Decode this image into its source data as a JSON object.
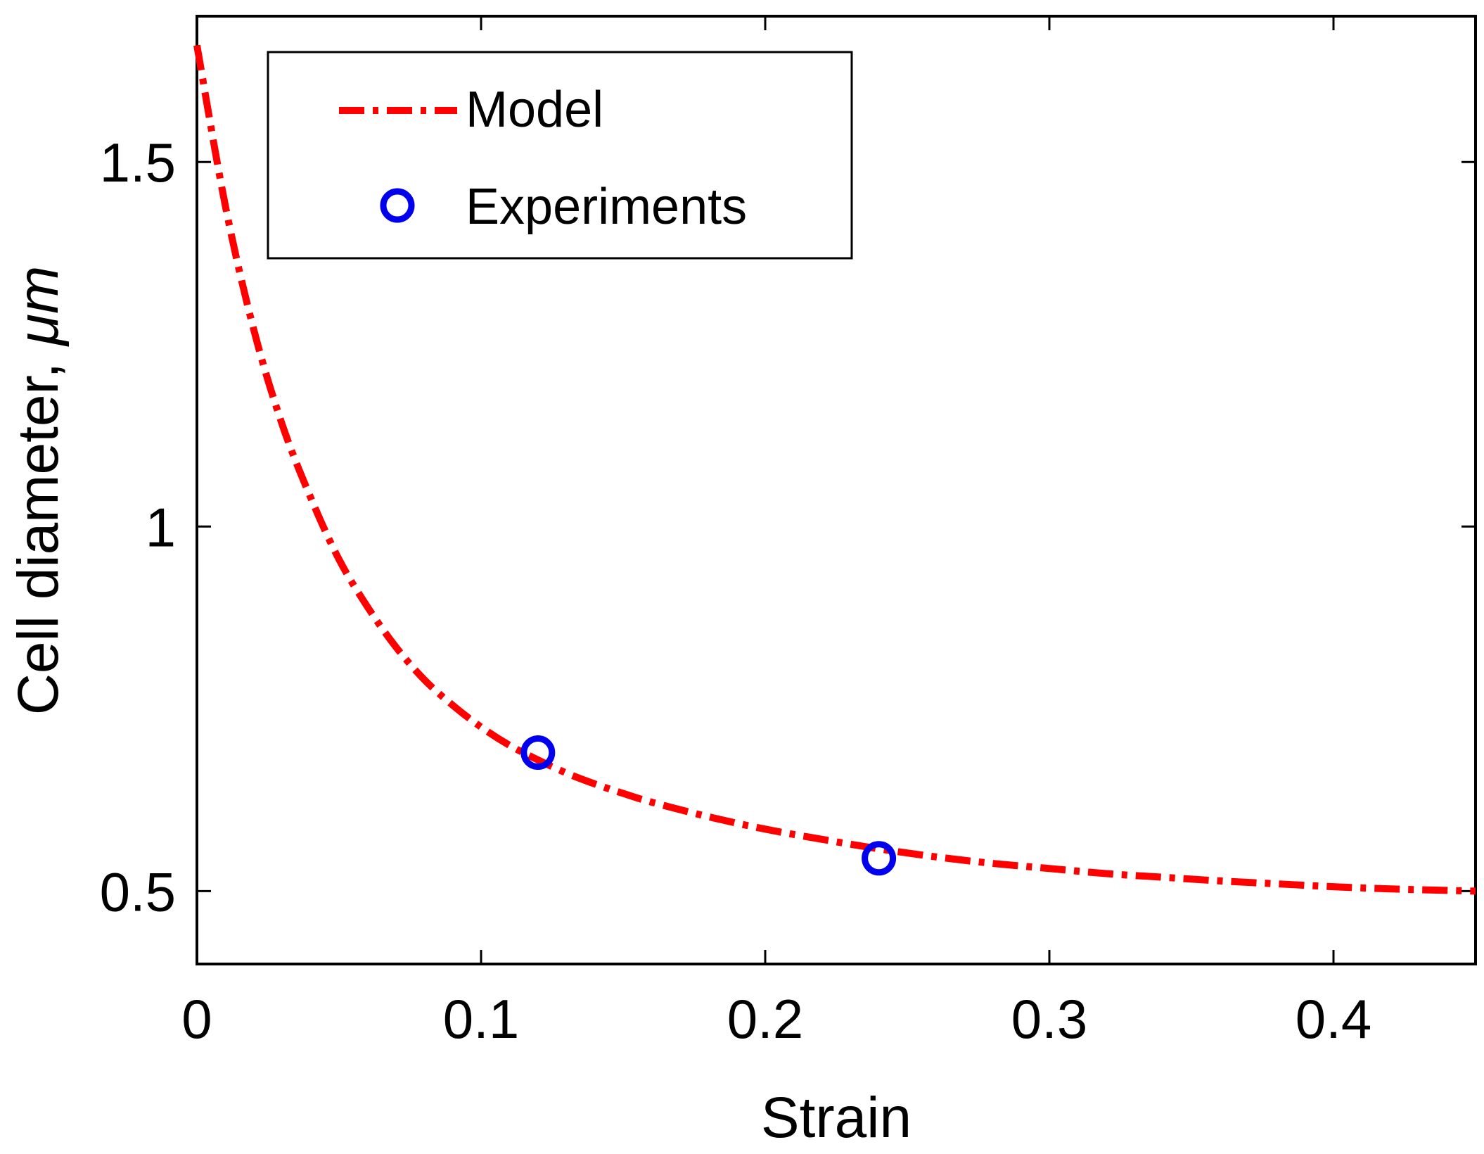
{
  "chart_data": {
    "type": "line",
    "title": "",
    "xlabel": "Strain",
    "ylabel": "Cell diameter,",
    "ylabel_unit": "μm",
    "xlim": [
      0,
      0.45
    ],
    "ylim": [
      0.4,
      1.7
    ],
    "x_ticks": [
      0,
      0.1,
      0.2,
      0.3,
      0.4
    ],
    "x_tick_labels": [
      "0",
      "0.1",
      "0.2",
      "0.3",
      "0.4"
    ],
    "y_ticks": [
      0.5,
      1,
      1.5
    ],
    "y_tick_labels": [
      "0.5",
      "1",
      "1.5"
    ],
    "grid": false,
    "legend_position": "top-left",
    "series": [
      {
        "name": "Model",
        "kind": "line",
        "style": "dash-dot",
        "color": "#ff0000",
        "x": [
          0,
          0.01,
          0.02,
          0.03,
          0.04,
          0.05,
          0.06,
          0.07,
          0.08,
          0.09,
          0.1,
          0.11,
          0.12,
          0.13,
          0.14,
          0.15,
          0.16,
          0.18,
          0.2,
          0.22,
          0.24,
          0.26,
          0.28,
          0.3,
          0.32,
          0.34,
          0.36,
          0.38,
          0.4,
          0.42,
          0.45
        ],
        "y": [
          1.66,
          1.44,
          1.27,
          1.14,
          1.04,
          0.955,
          0.89,
          0.835,
          0.79,
          0.755,
          0.725,
          0.7,
          0.68,
          0.662,
          0.647,
          0.634,
          0.622,
          0.602,
          0.585,
          0.571,
          0.558,
          0.547,
          0.538,
          0.531,
          0.524,
          0.519,
          0.514,
          0.51,
          0.506,
          0.503,
          0.5
        ]
      },
      {
        "name": "Experiments",
        "kind": "scatter",
        "marker": "circle-open",
        "color": "#0000ee",
        "x": [
          0.12,
          0.24
        ],
        "y": [
          0.69,
          0.545
        ]
      }
    ]
  }
}
